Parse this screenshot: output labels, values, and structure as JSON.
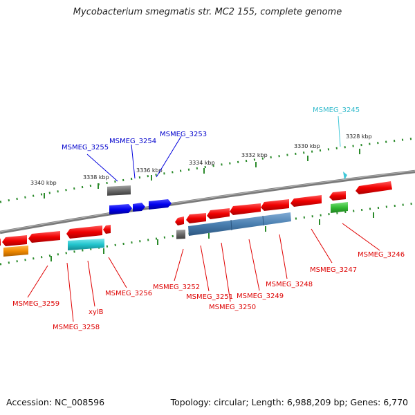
{
  "title": "Mycobacterium smegmatis str. MC2 155, complete genome",
  "footer": {
    "accession": "Accession: NC_008596",
    "summary": "Topology: circular; Length: 6,988,209 bp; Genes: 6,770"
  },
  "scale_labels": [
    "3340 kbp",
    "3338 kbp",
    "3336 kbp",
    "3334 kbp",
    "3332 kbp",
    "3330 kbp",
    "3328 kbp"
  ],
  "genes": {
    "g3245": "MSMEG_3245",
    "g3246": "MSMEG_3246",
    "g3247": "MSMEG_3247",
    "g3248": "MSMEG_3248",
    "g3249": "MSMEG_3249",
    "g3250": "MSMEG_3250",
    "g3251": "MSMEG_3251",
    "g3252": "MSMEG_3252",
    "g3253": "MSMEG_3253",
    "g3254": "MSMEG_3254",
    "g3255": "MSMEG_3255",
    "g3256": "MSMEG_3256",
    "xylB": "xylB",
    "g3258": "MSMEG_3258",
    "g3259": "MSMEG_3259"
  },
  "colors": {
    "red": "#e00000",
    "blue": "#0000dd",
    "cyan": "#33bbcc",
    "steel": "#4a7fb0",
    "gray": "#707070",
    "green": "#33bb33",
    "orange": "#f08a00"
  }
}
